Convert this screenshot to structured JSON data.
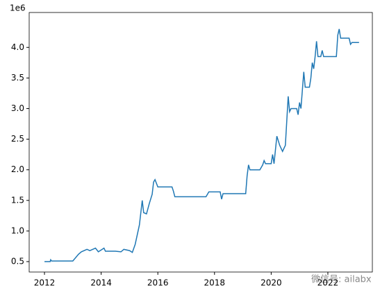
{
  "chart_data": {
    "type": "line",
    "y_offset_label": "1e6",
    "watermark": "微信号: ailabx",
    "color": "#1f77b4",
    "x": [
      2012.0,
      2012.2,
      2012.22,
      2012.25,
      2013.0,
      2013.2,
      2013.3,
      2013.5,
      2013.6,
      2013.8,
      2013.9,
      2014.1,
      2014.15,
      2014.5,
      2014.7,
      2014.8,
      2015.0,
      2015.1,
      2015.2,
      2015.35,
      2015.45,
      2015.5,
      2015.6,
      2015.7,
      2015.8,
      2015.85,
      2015.9,
      2016.0,
      2016.5,
      2016.55,
      2016.6,
      2017.7,
      2017.8,
      2018.2,
      2018.25,
      2018.3,
      2019.1,
      2019.15,
      2019.2,
      2019.25,
      2019.6,
      2019.7,
      2019.75,
      2019.8,
      2020.0,
      2020.05,
      2020.1,
      2020.2,
      2020.3,
      2020.4,
      2020.5,
      2020.55,
      2020.6,
      2020.65,
      2020.7,
      2020.9,
      2020.95,
      2021.0,
      2021.05,
      2021.1,
      2021.15,
      2021.2,
      2021.35,
      2021.4,
      2021.45,
      2021.5,
      2021.55,
      2021.6,
      2021.65,
      2021.75,
      2021.8,
      2021.85,
      2022.3,
      2022.35,
      2022.4,
      2022.45,
      2022.75,
      2022.8,
      2022.85,
      2023.1
    ],
    "values": [
      0.5,
      0.5,
      0.53,
      0.51,
      0.51,
      0.62,
      0.66,
      0.7,
      0.68,
      0.72,
      0.66,
      0.72,
      0.67,
      0.67,
      0.66,
      0.7,
      0.68,
      0.65,
      0.78,
      1.1,
      1.5,
      1.3,
      1.28,
      1.45,
      1.6,
      1.8,
      1.84,
      1.72,
      1.72,
      1.65,
      1.56,
      1.56,
      1.64,
      1.64,
      1.52,
      1.61,
      1.61,
      1.9,
      2.08,
      2.0,
      2.0,
      2.08,
      2.15,
      2.1,
      2.1,
      2.25,
      2.1,
      2.55,
      2.4,
      2.3,
      2.4,
      2.8,
      3.2,
      2.95,
      3.0,
      3.0,
      2.9,
      3.1,
      3.0,
      3.3,
      3.6,
      3.35,
      3.35,
      3.5,
      3.75,
      3.65,
      3.85,
      4.1,
      3.85,
      3.85,
      3.95,
      3.85,
      3.85,
      4.2,
      4.3,
      4.15,
      4.15,
      4.05,
      4.08,
      4.08
    ],
    "xlim": [
      2011.46,
      2023.57
    ],
    "xticks": [
      2012,
      2014,
      2016,
      2018,
      2020,
      2022
    ],
    "ylim": [
      0.33,
      4.57
    ],
    "yticks": [
      0.5,
      {
        "value": 1,
        "label": "1.0"
      },
      1.5,
      {
        "value": 2,
        "label": "2.0"
      },
      2.5,
      {
        "value": 3,
        "label": "3.0"
      },
      3.5,
      {
        "value": 4,
        "label": "4.0"
      }
    ]
  }
}
